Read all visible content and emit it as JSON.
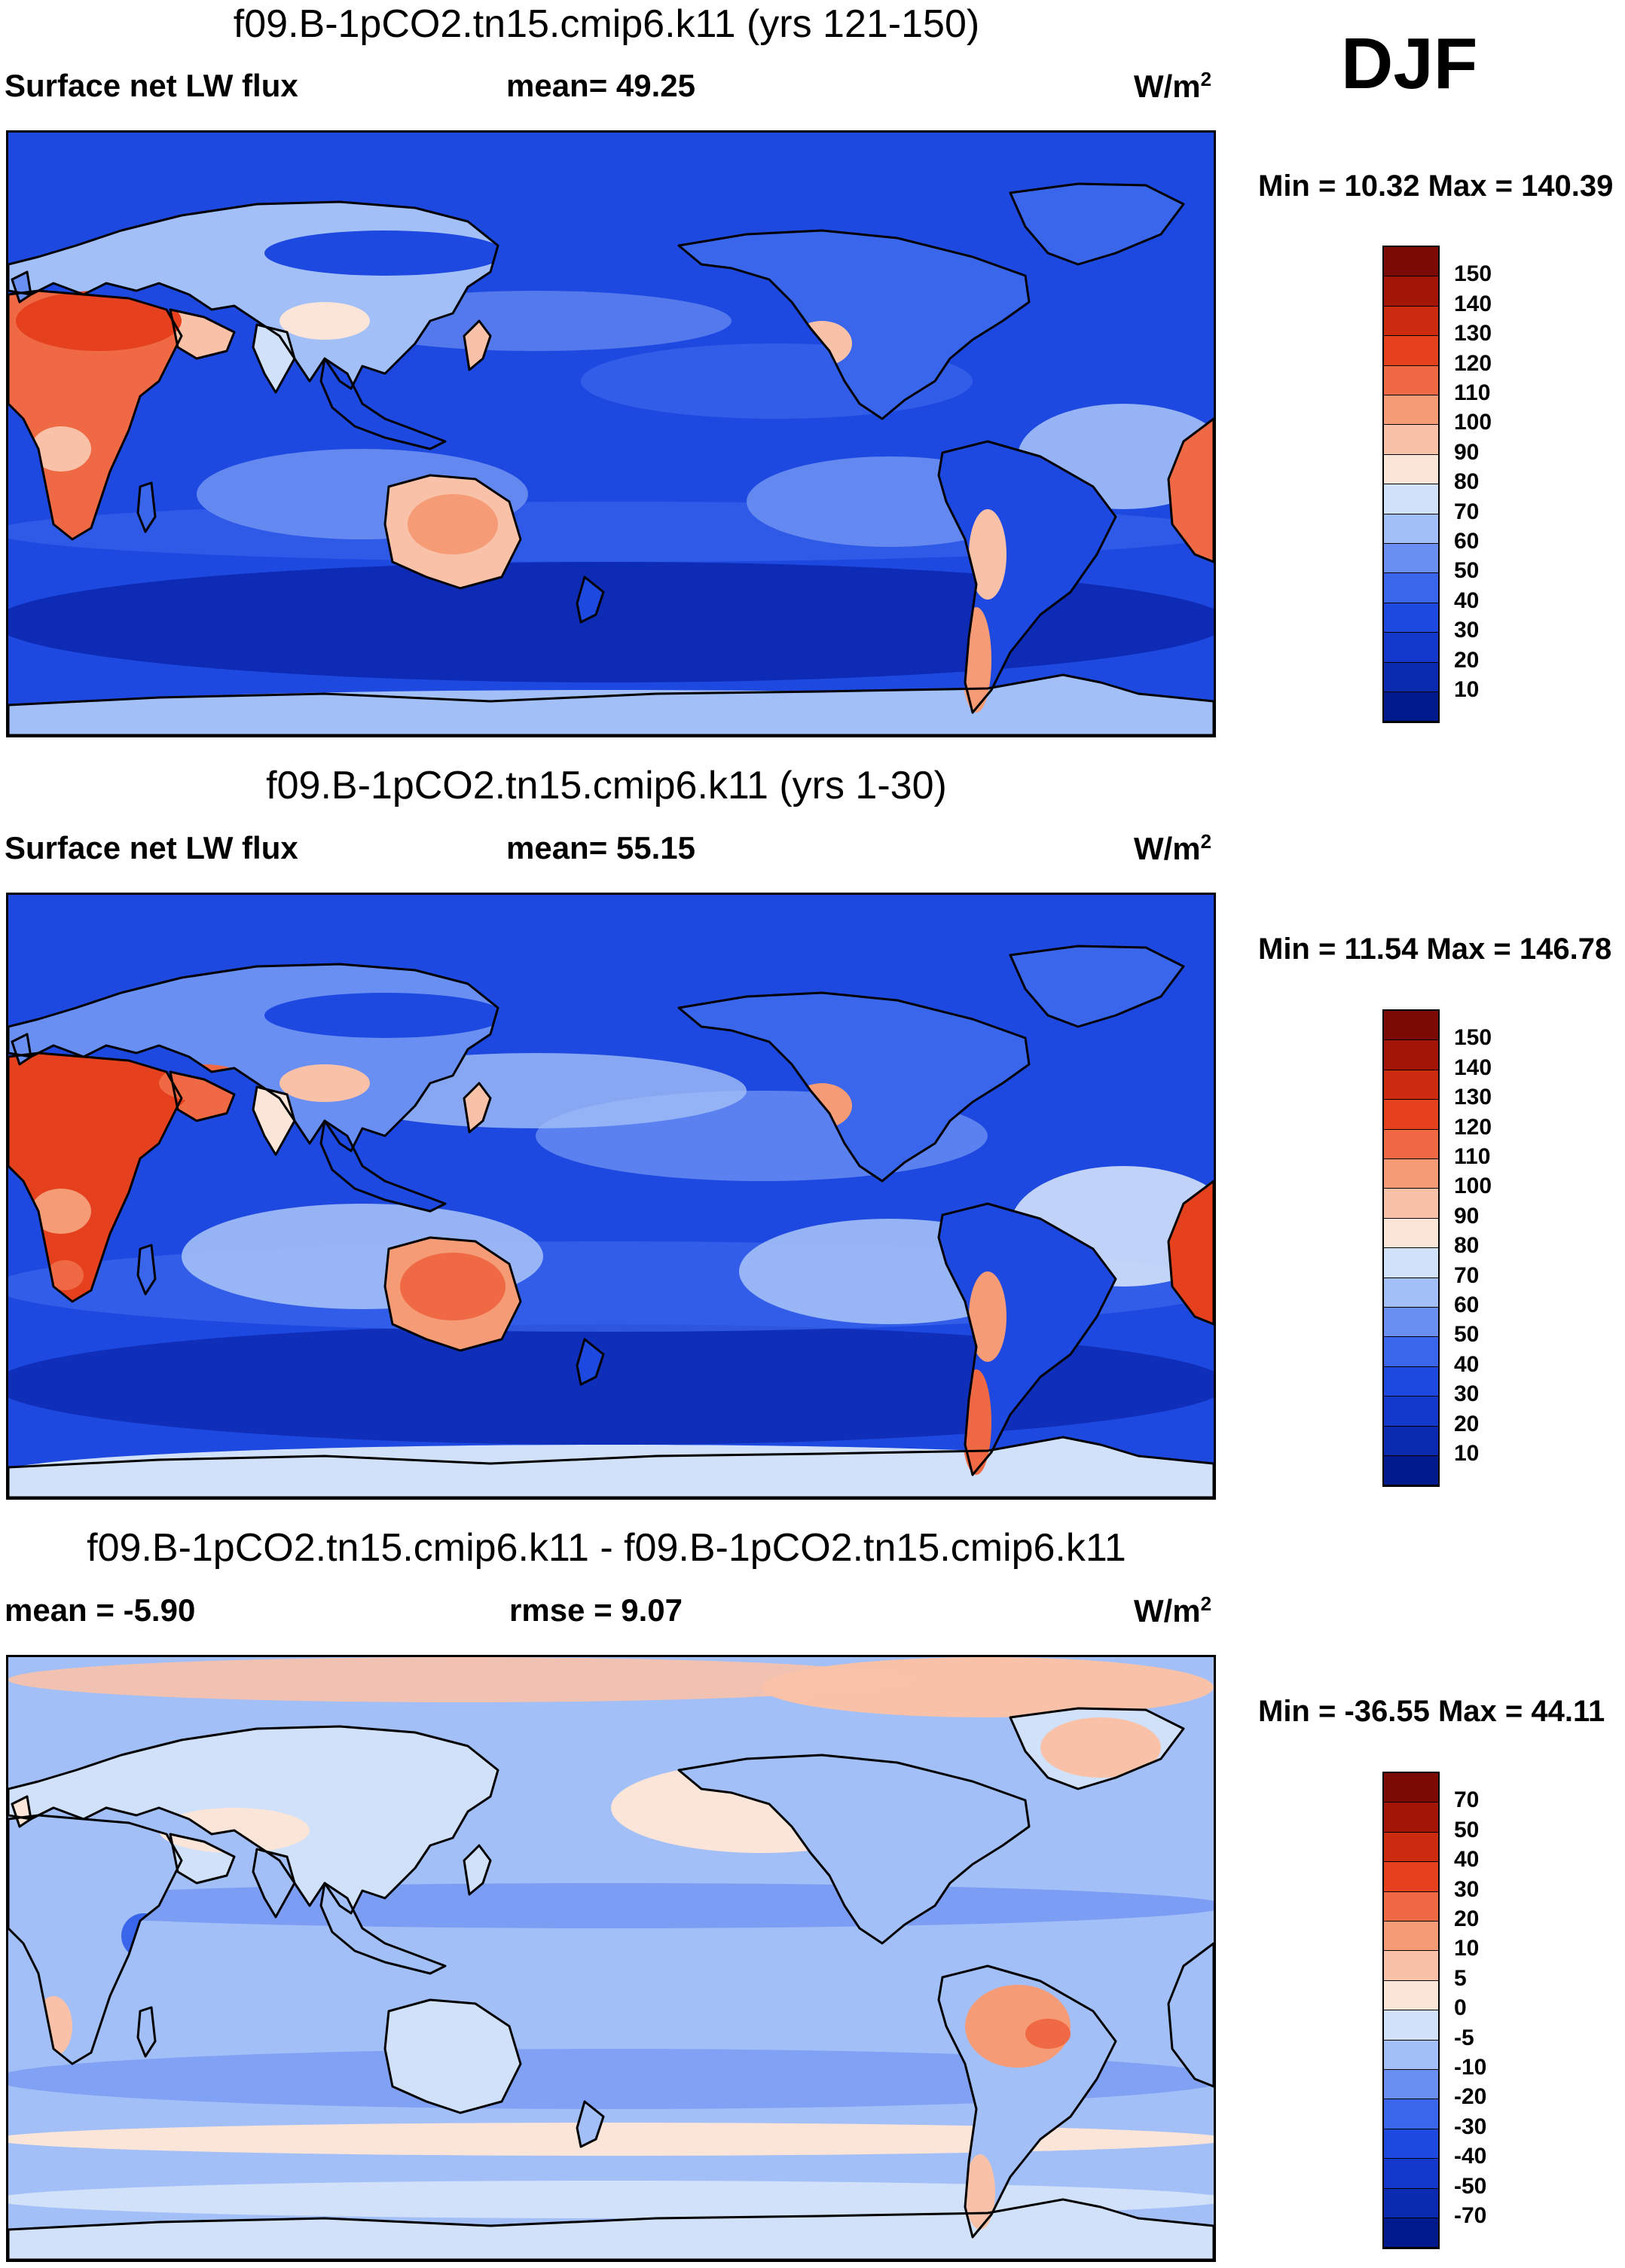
{
  "season": "DJF",
  "panels": [
    {
      "title": "f09.B-1pCO2.tn15.cmip6.k11 (yrs 121-150)",
      "left_label": "Surface net LW flux",
      "mid_label": "mean=  49.25",
      "units_base": "W/m",
      "units_exp": "2",
      "minmax": "Min =  10.32 Max = 140.39",
      "colorbar": {
        "labels": [
          "150",
          "140",
          "130",
          "120",
          "110",
          "100",
          "90",
          "80",
          "70",
          "60",
          "50",
          "40",
          "30",
          "20",
          "10"
        ],
        "colors": [
          "#001a8c",
          "#0a2ab0",
          "#1238cc",
          "#1e49e0",
          "#3a66ec",
          "#6a8ff2",
          "#a3bff7",
          "#d2e1fa",
          "#fbe5d8",
          "#f9c2a8",
          "#f59b76",
          "#ef6a44",
          "#e5411f",
          "#cc2b10",
          "#a31606",
          "#7a0a03"
        ]
      },
      "map_style": "absolute-early"
    },
    {
      "title": "f09.B-1pCO2.tn15.cmip6.k11 (yrs 1-30)",
      "left_label": "Surface net LW flux",
      "mid_label": "mean=  55.15",
      "units_base": "W/m",
      "units_exp": "2",
      "minmax": "Min =  11.54 Max = 146.78",
      "colorbar": {
        "labels": [
          "150",
          "140",
          "130",
          "120",
          "110",
          "100",
          "90",
          "80",
          "70",
          "60",
          "50",
          "40",
          "30",
          "20",
          "10"
        ],
        "colors": [
          "#001a8c",
          "#0a2ab0",
          "#1238cc",
          "#1e49e0",
          "#3a66ec",
          "#6a8ff2",
          "#a3bff7",
          "#d2e1fa",
          "#fbe5d8",
          "#f9c2a8",
          "#f59b76",
          "#ef6a44",
          "#e5411f",
          "#cc2b10",
          "#a31606",
          "#7a0a03"
        ]
      },
      "map_style": "absolute-late"
    },
    {
      "title": "f09.B-1pCO2.tn15.cmip6.k11 - f09.B-1pCO2.tn15.cmip6.k11",
      "left_label": "mean =  -5.90",
      "mid_label": "rmse =    9.07",
      "units_base": "W/m",
      "units_exp": "2",
      "minmax": "Min = -36.55 Max =  44.11",
      "colorbar": {
        "labels": [
          "70",
          "50",
          "40",
          "30",
          "20",
          "10",
          "5",
          "0",
          "-5",
          "-10",
          "-20",
          "-30",
          "-40",
          "-50",
          "-70"
        ],
        "colors": [
          "#001a8c",
          "#0a2ab0",
          "#1238cc",
          "#1e49e0",
          "#3a66ec",
          "#6a8ff2",
          "#a3bff7",
          "#d2e1fa",
          "#fbe5d8",
          "#f9c2a8",
          "#f59b76",
          "#ef6a44",
          "#e5411f",
          "#cc2b10",
          "#a31606",
          "#7a0a03"
        ]
      },
      "map_style": "difference"
    }
  ]
}
